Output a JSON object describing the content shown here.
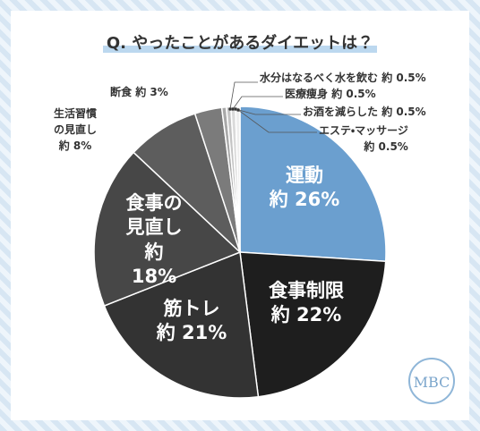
{
  "chart_data": {
    "type": "pie",
    "title": "Q. やったことがあるダイエットは？",
    "categories": [
      "運動",
      "食事制限",
      "筋トレ",
      "食事の見直し",
      "生活習慣の見直し",
      "断食",
      "水分はなるべく水を飲む",
      "医療痩身",
      "お酒を減らした",
      "エステ・マッサージ"
    ],
    "values": [
      26,
      22,
      21,
      18,
      8,
      3,
      0.5,
      0.5,
      0.5,
      0.5
    ],
    "value_labels": [
      "約 26%",
      "約 22%",
      "約 21%",
      "約 18%",
      "約 8%",
      "約 3%",
      "約 0.5%",
      "約 0.5%",
      "約 0.5%",
      "約 0.5%"
    ],
    "colors": [
      "#6b9fcf",
      "#1e1e1e",
      "#333333",
      "#474747",
      "#5d5d5d",
      "#7b7b7b",
      "#a8a8a8",
      "#c4c4c4",
      "#dadada",
      "#eeeeee"
    ]
  },
  "logo": "MBC"
}
